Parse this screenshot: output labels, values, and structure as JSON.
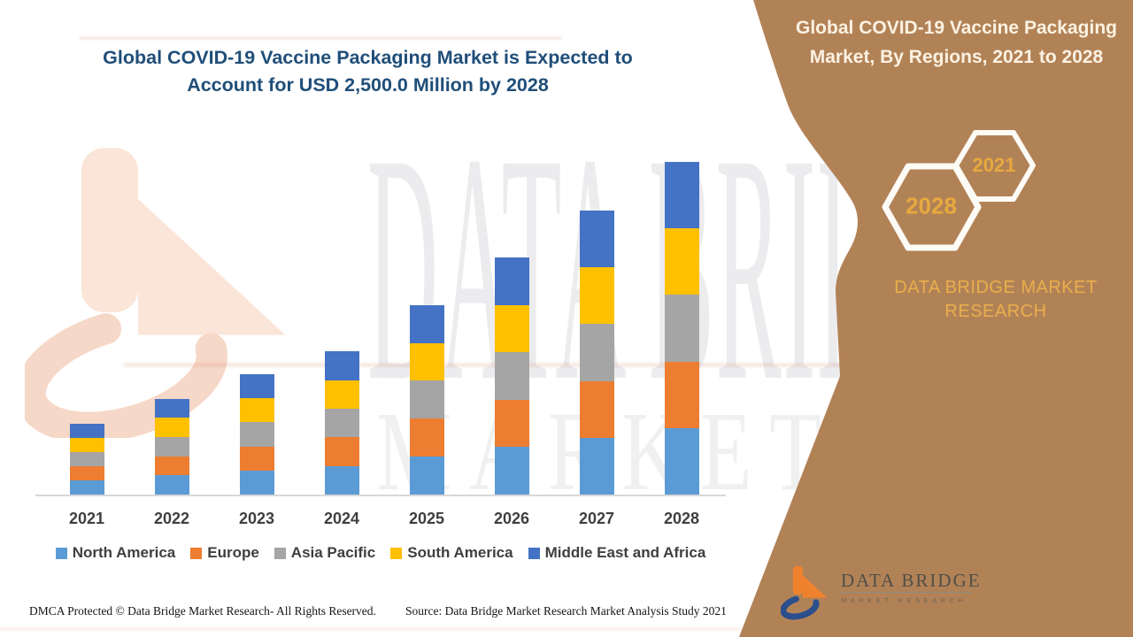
{
  "main_title": {
    "lines": [
      "Global COVID-19 Vaccine Packaging Market is Expected to",
      "Account for USD 2,500.0 Million by 2028"
    ],
    "color": "#1F4E79"
  },
  "chart_data": {
    "type": "bar",
    "stacked": true,
    "title": "Global COVID-19 Vaccine Packaging Market is Expected to Account for USD 2,500.0 Million by 2028",
    "categories": [
      "2021",
      "2022",
      "2023",
      "2024",
      "2025",
      "2026",
      "2027",
      "2028"
    ],
    "series": [
      {
        "name": "North America",
        "color": "#5B9BD5",
        "values": [
          106,
          144,
          181,
          215,
          285,
          356,
          427,
          500
        ]
      },
      {
        "name": "Europe",
        "color": "#ED7D31",
        "values": [
          106,
          144,
          181,
          215,
          285,
          356,
          427,
          500
        ]
      },
      {
        "name": "Asia Pacific",
        "color": "#A5A5A5",
        "values": [
          106,
          144,
          181,
          215,
          285,
          356,
          427,
          500
        ]
      },
      {
        "name": "South America",
        "color": "#FFC000",
        "values": [
          106,
          144,
          181,
          215,
          285,
          356,
          427,
          500
        ]
      },
      {
        "name": "Middle East and Africa",
        "color": "#4472C4",
        "values": [
          106,
          144,
          181,
          215,
          285,
          356,
          427,
          500
        ]
      }
    ],
    "totals": [
      530,
      720,
      905,
      1075,
      1425,
      1780,
      2135,
      2500
    ],
    "unit": "USD Million",
    "ylim": [
      0,
      2500
    ],
    "y_axis_shown": false,
    "gridlines": false,
    "legend_position": "bottom"
  },
  "footer": {
    "dmca": "DMCA Protected © Data Bridge Market Research- All Rights Reserved.",
    "source": "Source: Data Bridge Market Research Market Analysis Study 2021"
  },
  "sidebar": {
    "bg": "#B28257",
    "title_lines": [
      "Global COVID-19 Vaccine Packaging",
      "Market, By Regions, 2021 to 2028"
    ],
    "hexagons": [
      {
        "label": "2028"
      },
      {
        "label": "2021"
      }
    ],
    "hexagon_text_color": "#E7A93E",
    "brand": {
      "lines": [
        "DATA BRIDGE MARKET",
        "RESEARCH"
      ],
      "color": "#E9AF4B"
    },
    "logo": {
      "name": "DATA BRIDGE",
      "tagline": "MARKET RESEARCH"
    }
  },
  "watermark": {
    "line1": "DATA BRIDGE",
    "line2": "MARKET RESEARCH"
  }
}
